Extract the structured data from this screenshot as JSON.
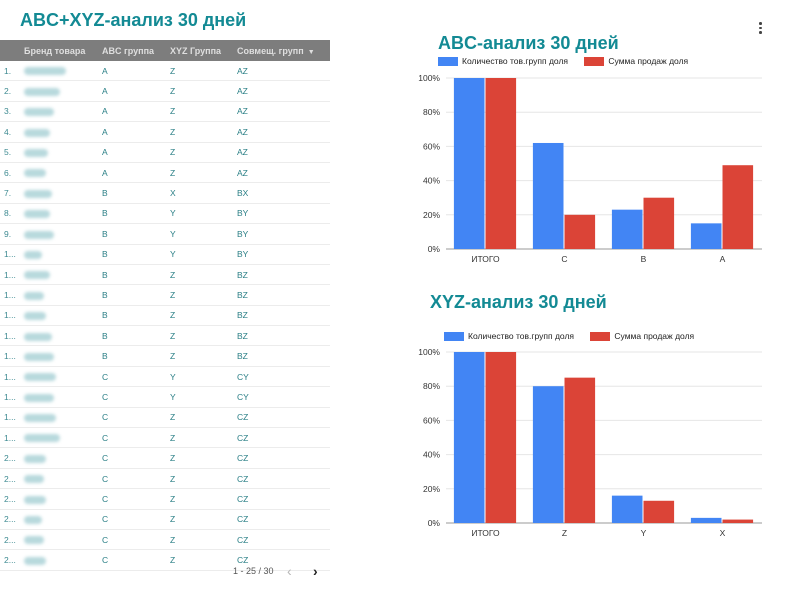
{
  "page": {
    "title": "ABC+XYZ-анализ 30 дней",
    "menu_icon": "more-vert-icon"
  },
  "table": {
    "headers": [
      "",
      "Бренд товара",
      "ABC группа",
      "XYZ Группа",
      "Совмещ. групп"
    ],
    "sort_icon": "sort-desc-icon",
    "rows": [
      {
        "idx": "1.",
        "abc": "A",
        "xyz": "Z",
        "comb": "AZ"
      },
      {
        "idx": "2.",
        "abc": "A",
        "xyz": "Z",
        "comb": "AZ"
      },
      {
        "idx": "3.",
        "abc": "A",
        "xyz": "Z",
        "comb": "AZ"
      },
      {
        "idx": "4.",
        "abc": "A",
        "xyz": "Z",
        "comb": "AZ"
      },
      {
        "idx": "5.",
        "abc": "A",
        "xyz": "Z",
        "comb": "AZ"
      },
      {
        "idx": "6.",
        "abc": "A",
        "xyz": "Z",
        "comb": "AZ"
      },
      {
        "idx": "7.",
        "abc": "B",
        "xyz": "X",
        "comb": "BX"
      },
      {
        "idx": "8.",
        "abc": "B",
        "xyz": "Y",
        "comb": "BY"
      },
      {
        "idx": "9.",
        "abc": "B",
        "xyz": "Y",
        "comb": "BY"
      },
      {
        "idx": "1...",
        "abc": "B",
        "xyz": "Y",
        "comb": "BY"
      },
      {
        "idx": "1...",
        "abc": "B",
        "xyz": "Z",
        "comb": "BZ"
      },
      {
        "idx": "1...",
        "abc": "B",
        "xyz": "Z",
        "comb": "BZ"
      },
      {
        "idx": "1...",
        "abc": "B",
        "xyz": "Z",
        "comb": "BZ"
      },
      {
        "idx": "1...",
        "abc": "B",
        "xyz": "Z",
        "comb": "BZ"
      },
      {
        "idx": "1...",
        "abc": "B",
        "xyz": "Z",
        "comb": "BZ"
      },
      {
        "idx": "1...",
        "abc": "C",
        "xyz": "Y",
        "comb": "CY"
      },
      {
        "idx": "1...",
        "abc": "C",
        "xyz": "Y",
        "comb": "CY"
      },
      {
        "idx": "1...",
        "abc": "C",
        "xyz": "Z",
        "comb": "CZ"
      },
      {
        "idx": "1...",
        "abc": "C",
        "xyz": "Z",
        "comb": "CZ"
      },
      {
        "idx": "2...",
        "abc": "C",
        "xyz": "Z",
        "comb": "CZ"
      },
      {
        "idx": "2...",
        "abc": "C",
        "xyz": "Z",
        "comb": "CZ"
      },
      {
        "idx": "2...",
        "abc": "C",
        "xyz": "Z",
        "comb": "CZ"
      },
      {
        "idx": "2...",
        "abc": "C",
        "xyz": "Z",
        "comb": "CZ"
      },
      {
        "idx": "2...",
        "abc": "C",
        "xyz": "Z",
        "comb": "CZ"
      },
      {
        "idx": "2...",
        "abc": "C",
        "xyz": "Z",
        "comb": "CZ"
      }
    ],
    "brand_blurred": true,
    "pagination": {
      "label": "1 - 25 / 30",
      "prev_icon": "chevron-left-icon",
      "next_icon": "chevron-right-icon"
    }
  },
  "colors": {
    "accent": "#138a94",
    "series_count": "#4285f4",
    "series_sales": "#db4437",
    "header_bg": "#7d7d7d"
  },
  "chart_data": [
    {
      "type": "bar",
      "title": "ABC-анализ 30 дней",
      "categories": [
        "ИТОГО",
        "C",
        "B",
        "A"
      ],
      "series": [
        {
          "name": "Количество тов.групп доля",
          "values": [
            100,
            62,
            23,
            15
          ]
        },
        {
          "name": "Сумма продаж доля",
          "values": [
            100,
            20,
            30,
            49
          ]
        }
      ],
      "yticks": [
        "0%",
        "20%",
        "40%",
        "60%",
        "80%",
        "100%"
      ],
      "ylim": [
        0,
        100
      ],
      "legend": "top-left",
      "grid": true
    },
    {
      "type": "bar",
      "title": "XYZ-анализ 30 дней",
      "categories": [
        "ИТОГО",
        "Z",
        "Y",
        "X"
      ],
      "series": [
        {
          "name": "Количество тов.групп доля",
          "values": [
            100,
            80,
            16,
            3
          ]
        },
        {
          "name": "Сумма продаж доля",
          "values": [
            100,
            85,
            13,
            2
          ]
        }
      ],
      "yticks": [
        "0%",
        "20%",
        "40%",
        "60%",
        "80%",
        "100%"
      ],
      "ylim": [
        0,
        100
      ],
      "legend": "top-left",
      "grid": true
    }
  ]
}
